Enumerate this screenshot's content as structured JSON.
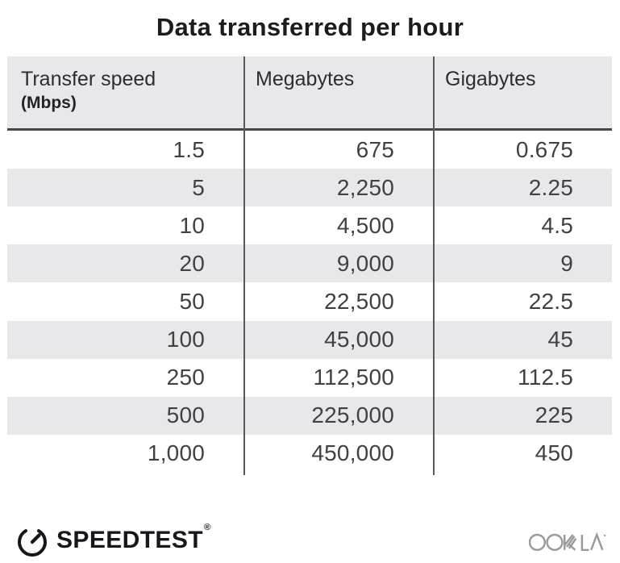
{
  "title": "Data transferred per hour",
  "table": {
    "columns": [
      {
        "label": "Transfer speed",
        "sublabel": "(Mbps)"
      },
      {
        "label": "Megabytes",
        "sublabel": ""
      },
      {
        "label": "Gigabytes",
        "sublabel": ""
      }
    ],
    "rows": [
      [
        "1.5",
        "675",
        "0.675"
      ],
      [
        "5",
        "2,250",
        "2.25"
      ],
      [
        "10",
        "4,500",
        "4.5"
      ],
      [
        "20",
        "9,000",
        "9"
      ],
      [
        "50",
        "22,500",
        "22.5"
      ],
      [
        "100",
        "45,000",
        "45"
      ],
      [
        "250",
        "112,500",
        "112.5"
      ],
      [
        "500",
        "225,000",
        "225"
      ],
      [
        "1,000",
        "450,000",
        "450"
      ]
    ]
  },
  "footer": {
    "brand": "SPEEDTEST",
    "brand_mark": "®",
    "company": "OOKLA",
    "icons": {
      "gauge": "speedtest-gauge-icon",
      "wordmark": "ookla-wordmark"
    }
  },
  "colors": {
    "stripe_gray": "#e8e8ea",
    "divider_gray": "#58585a",
    "header_rule": "#47474a",
    "title_text": "#1c1c1e",
    "number_text": "#414143",
    "speedtest_dark": "#16161d",
    "ookla_gray": "#9a9a9a"
  },
  "chart_data": {
    "type": "table",
    "title": "Data transferred per hour",
    "columns": [
      "Transfer speed (Mbps)",
      "Megabytes",
      "Gigabytes"
    ],
    "rows": [
      [
        1.5,
        675,
        0.675
      ],
      [
        5,
        2250,
        2.25
      ],
      [
        10,
        4500,
        4.5
      ],
      [
        20,
        9000,
        9
      ],
      [
        50,
        22500,
        22.5
      ],
      [
        100,
        45000,
        45
      ],
      [
        250,
        112500,
        112.5
      ],
      [
        500,
        225000,
        225
      ],
      [
        1000,
        450000,
        450
      ]
    ],
    "layout": {
      "striped_rows": true,
      "column_dividers": true,
      "legend": "none"
    }
  }
}
